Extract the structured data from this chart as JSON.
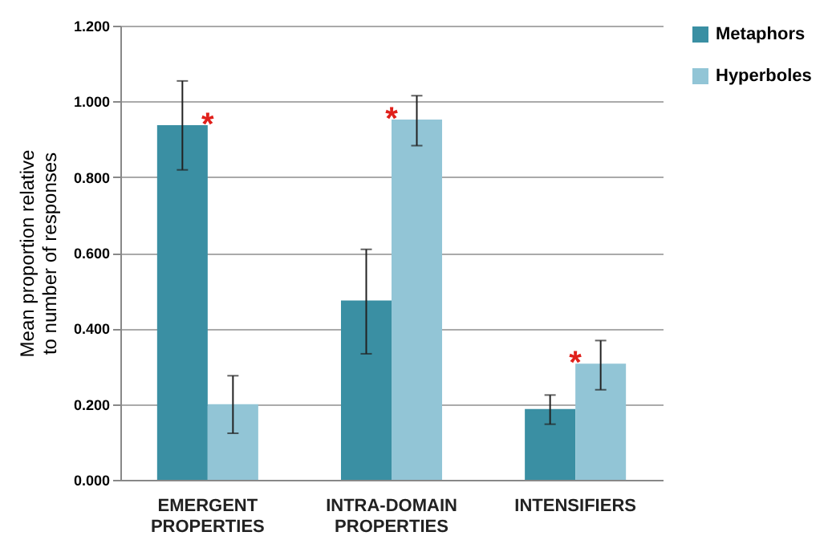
{
  "chart_data": {
    "type": "bar",
    "ylabel": "Mean proportion relative to number of responses",
    "categories": [
      "EMERGENT PROPERTIES",
      "INTRA-DOMAIN PROPERTIES",
      "INTENSIFIERS"
    ],
    "series": [
      {
        "name": "Metaphors",
        "color": "#3a8fa3",
        "values": [
          0.937,
          0.474,
          0.187
        ],
        "errors": [
          [
            0.819,
            1.054
          ],
          [
            0.333,
            0.609
          ],
          [
            0.147,
            0.224
          ]
        ]
      },
      {
        "name": "Hyperboles",
        "color": "#92c5d6",
        "values": [
          0.2,
          0.952,
          0.307
        ],
        "errors": [
          [
            0.123,
            0.275
          ],
          [
            0.883,
            1.015
          ],
          [
            0.238,
            0.368
          ]
        ]
      }
    ],
    "ylim": [
      0,
      1.2
    ],
    "yticks": [
      {
        "value": 0,
        "label": "0.000"
      },
      {
        "value": 0.2,
        "label": "0.200"
      },
      {
        "value": 0.4,
        "label": "0.400"
      },
      {
        "value": 0.6,
        "label": "0.600"
      },
      {
        "value": 0.8,
        "label": "0.800"
      },
      {
        "value": 1.0,
        "label": "1.000"
      },
      {
        "value": 1.2,
        "label": "1.200"
      }
    ],
    "annotations": [
      "*",
      "*",
      "*"
    ],
    "grid": "y",
    "legend": "right"
  }
}
